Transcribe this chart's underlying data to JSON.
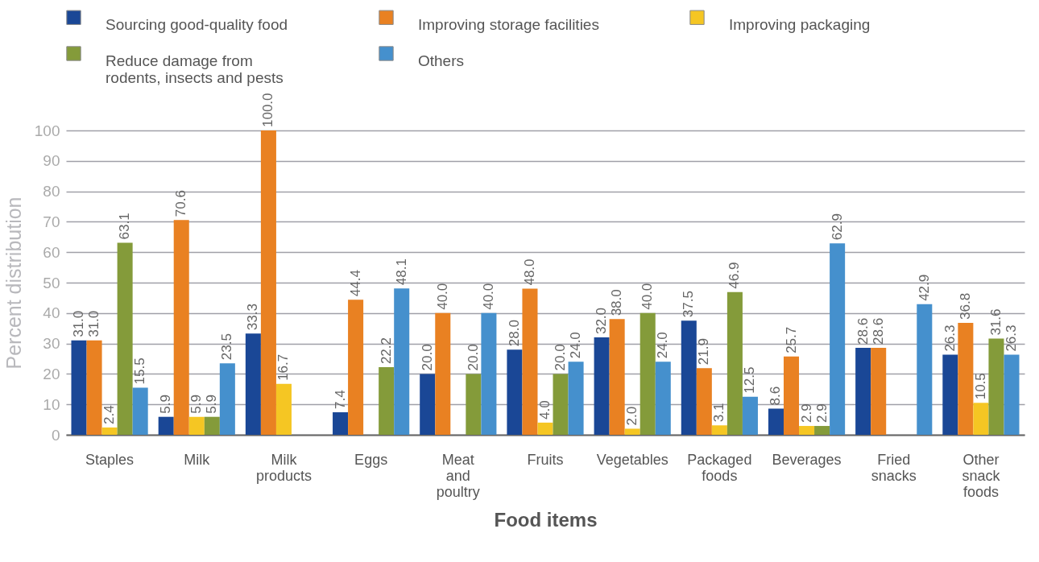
{
  "chart_data": {
    "type": "bar",
    "xlabel": "Food items",
    "ylabel": "Percent distribution",
    "categories": [
      "Staples",
      "Milk",
      "Milk products",
      "Eggs",
      "Meat and poultry",
      "Fruits",
      "Vegetables",
      "Packaged foods",
      "Beverages",
      "Fried snacks",
      "Other snack foods"
    ],
    "series": [
      {
        "name": "Sourcing good-quality food",
        "color": "#1a4796",
        "values": [
          31.0,
          5.9,
          33.3,
          7.4,
          20.0,
          28.0,
          32.0,
          37.5,
          8.6,
          28.6,
          26.3
        ],
        "value_labels": [
          "31.0",
          "5.9",
          "33.3",
          "7.4",
          "20.0",
          "28.0",
          "32.0",
          "37.5",
          "8.6",
          "28.6",
          "26.3"
        ]
      },
      {
        "name": "Improving storage facilities",
        "color": "#e98122",
        "values": [
          31.0,
          70.6,
          100.0,
          44.4,
          40.0,
          48.0,
          38.0,
          21.9,
          25.7,
          28.6,
          36.8
        ],
        "value_labels": [
          "31.0",
          "70.6",
          "100.0",
          "44.4",
          "40.0",
          "48.0",
          "38.0",
          "21.9",
          "25.7",
          "28.6",
          "36.8"
        ]
      },
      {
        "name": "Improving packaging",
        "color": "#f5c623",
        "values": [
          2.4,
          5.9,
          16.7,
          null,
          null,
          4.0,
          2.0,
          3.1,
          2.9,
          null,
          10.5
        ],
        "value_labels": [
          "2.4",
          "5.9",
          "16.7",
          null,
          null,
          "4.0",
          "2.0",
          "3.1",
          "2.9",
          null,
          "10.5"
        ]
      },
      {
        "name": "Reduce damage from rodents, insects and pests",
        "color": "#849b3a",
        "values": [
          63.1,
          5.9,
          null,
          22.2,
          20.0,
          20.0,
          40.0,
          46.9,
          2.9,
          null,
          31.6
        ],
        "value_labels": [
          "63.1",
          "5.9",
          null,
          "22.2",
          "20.0",
          "20.0",
          "40.0",
          "46.9",
          "2.9",
          null,
          "31.6"
        ]
      },
      {
        "name": "Others",
        "color": "#4590cd",
        "values": [
          15.5,
          23.5,
          null,
          48.1,
          40.0,
          24.0,
          24.0,
          12.5,
          62.9,
          42.9,
          26.3
        ],
        "value_labels": [
          "15.5",
          "23.5",
          null,
          "48.1",
          "40.0",
          "24.0",
          "24.0",
          "12.5",
          "62.9",
          "42.9",
          "26.3"
        ]
      }
    ],
    "ylim": [
      0,
      100
    ],
    "yticks": [
      0,
      10,
      20,
      30,
      40,
      50,
      60,
      70,
      80,
      90,
      100
    ],
    "grid": "y",
    "legend": "top"
  }
}
